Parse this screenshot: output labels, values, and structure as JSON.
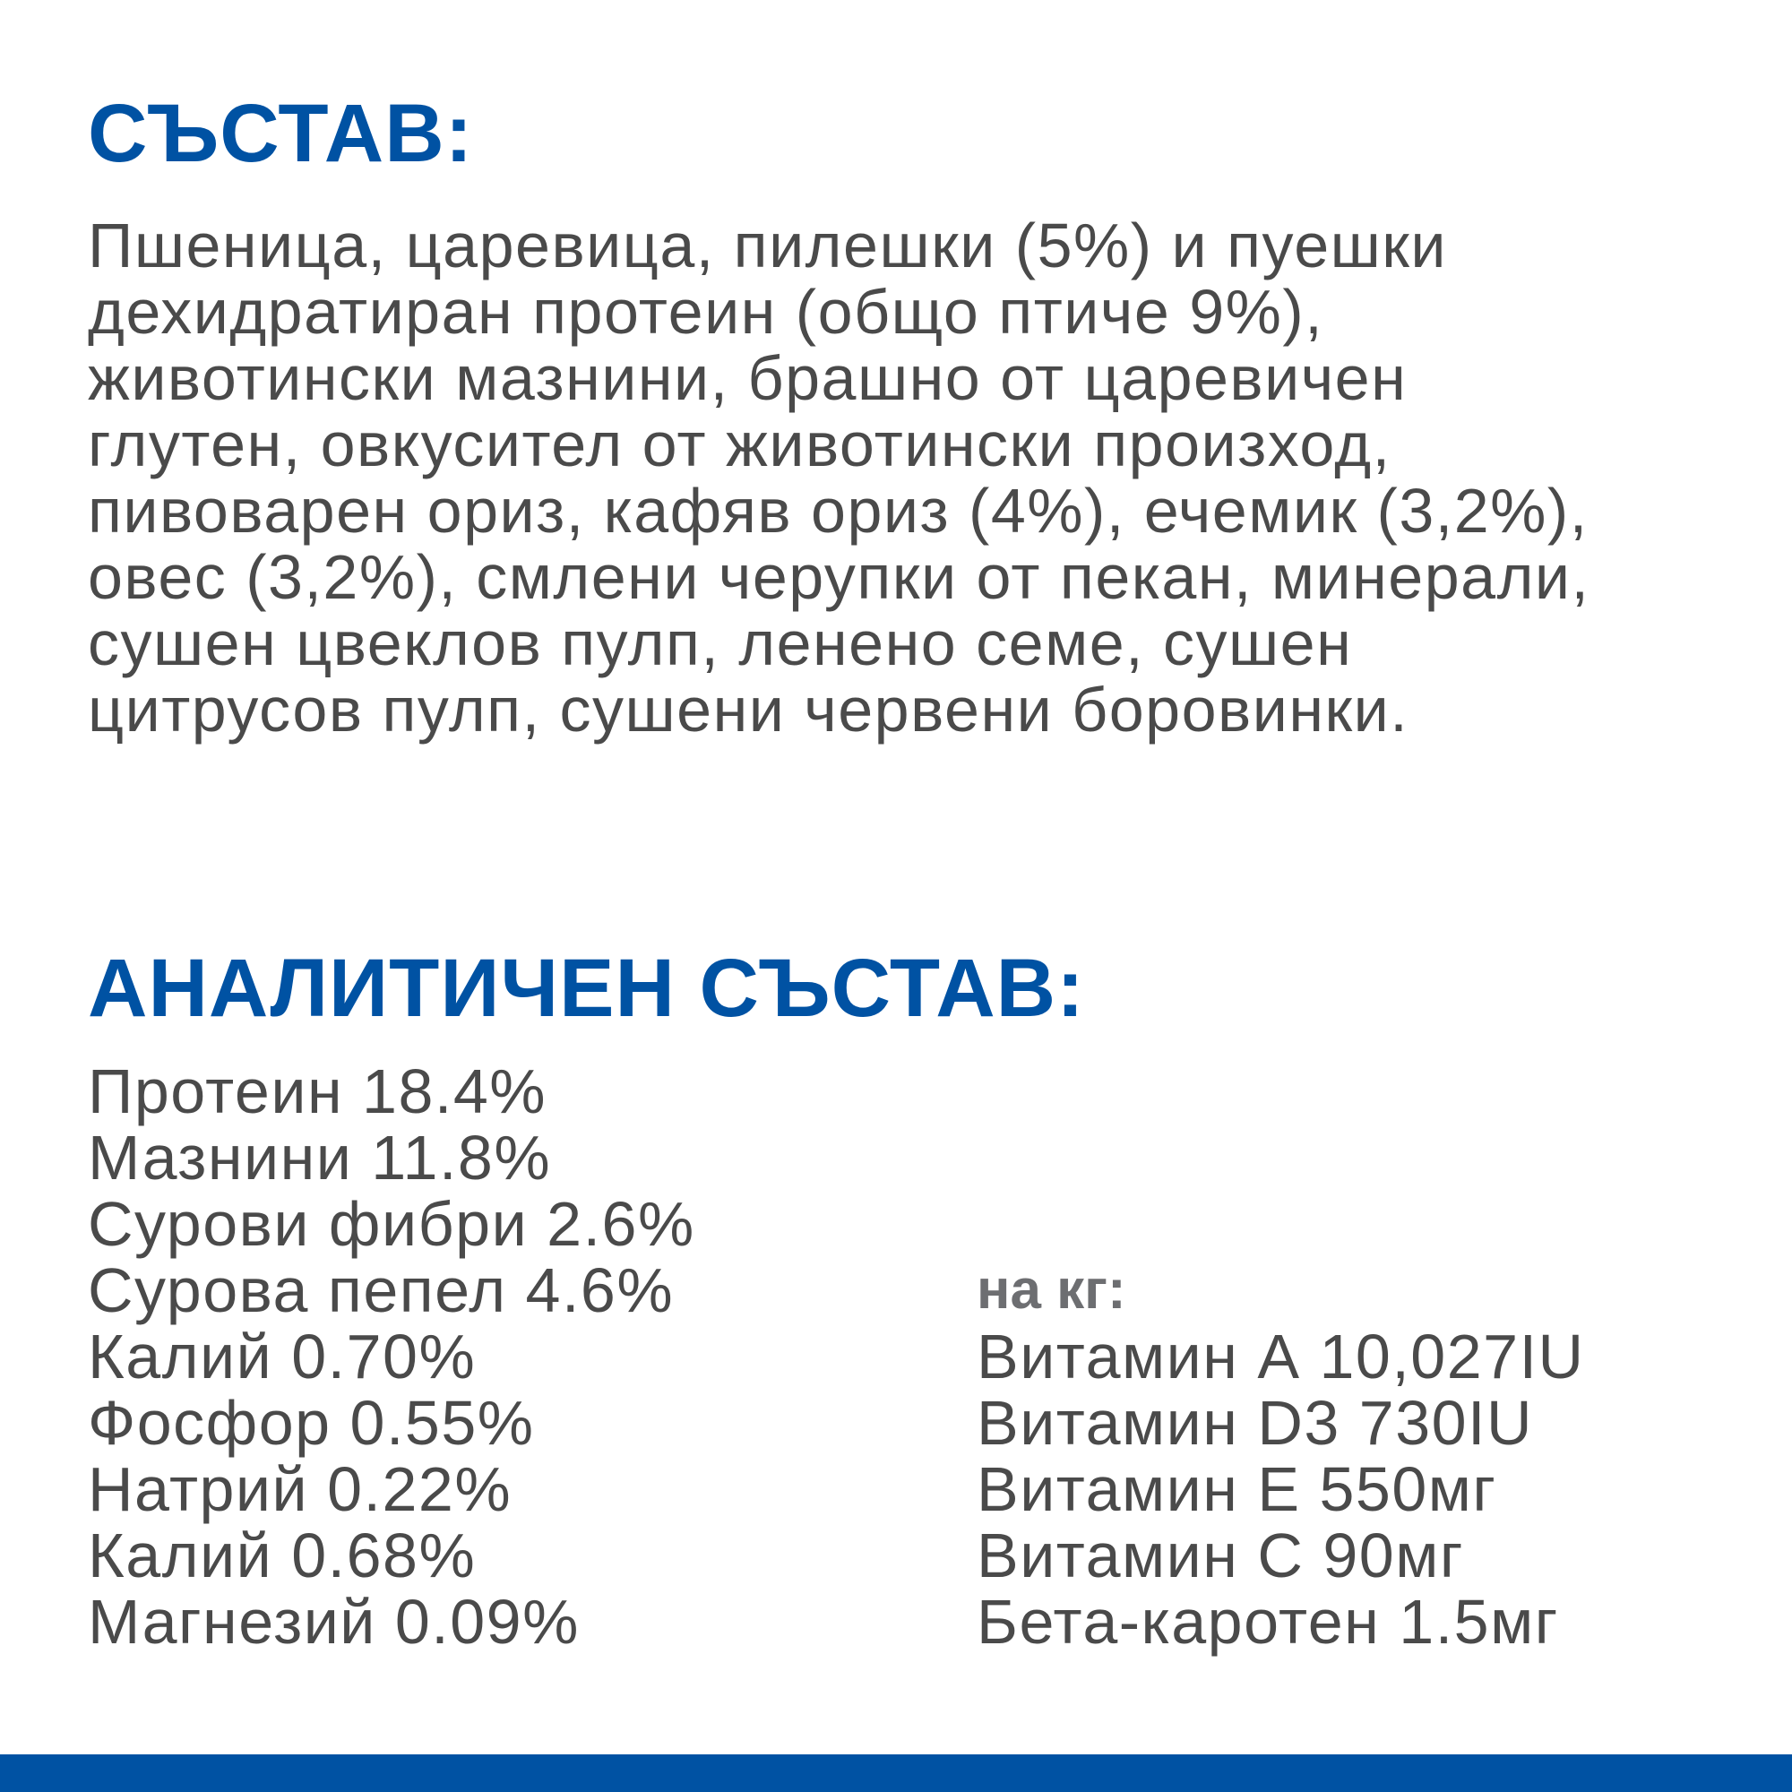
{
  "ingredients": {
    "title": "СЪСТАВ:",
    "lines": [
      "Пшеница, царевица, пилешки (5%) и пуешки",
      "дехидратиран протеин (общо птиче 9%),",
      "животински мазнини, брашно от царевичен",
      "глутен, овкусител от животински произход,",
      "пивоварен ориз, кафяв ориз (4%), ечемик (3,2%),",
      "овес (3,2%), смлени черупки от пекан, минерали,",
      "сушен цвеклов пулп, ленено семе, сушен",
      "цитрусов пулп, сушени червени боровинки."
    ]
  },
  "analytical": {
    "title": "АНАЛИТИЧЕН СЪСТАВ:",
    "items": [
      "Протеин 18.4%",
      "Мазнини 11.8%",
      "Сурови фибри 2.6%",
      "Сурова пепел 4.6%",
      "Калий 0.70%",
      "Фосфор 0.55%",
      "Натрий 0.22%",
      "Калий 0.68%",
      "Магнезий 0.09%"
    ],
    "per_kg_label": "на кг:",
    "per_kg_items": [
      "Витамин А 10,027IU",
      "Витамин D3 730IU",
      "Витамин Е 550мг",
      "Витамин С 90мг",
      "Бета-каротен 1.5мг"
    ]
  },
  "colors": {
    "accent": "#0052a3",
    "text": "#4a4a4a",
    "subheading": "#6d6e71"
  }
}
